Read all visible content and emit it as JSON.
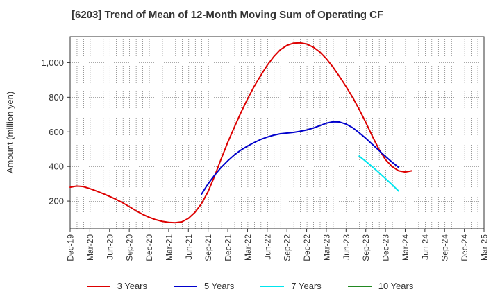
{
  "chart_data": {
    "type": "line",
    "title": "[6203]  Trend of Mean of 12-Month Moving Sum of Operating CF",
    "xlabel": "",
    "ylabel": "Amount (million yen)",
    "ylim": [
      40,
      1150
    ],
    "yticks": [
      200,
      400,
      600,
      800,
      1000
    ],
    "ytick_labels": [
      "200",
      "400",
      "600",
      "800",
      "1,000"
    ],
    "x_categories": [
      "Dec-19",
      "Mar-20",
      "Jun-20",
      "Sep-20",
      "Dec-20",
      "Mar-21",
      "Jun-21",
      "Sep-21",
      "Dec-21",
      "Mar-22",
      "Jun-22",
      "Sep-22",
      "Dec-22",
      "Mar-23",
      "Jun-23",
      "Sep-23",
      "Dec-23",
      "Mar-24",
      "Jun-24",
      "Sep-24",
      "Dec-24",
      "Mar-25"
    ],
    "x_months_total": 63,
    "grid": true,
    "legend_position": "bottom",
    "series": [
      {
        "name": "3 Years",
        "color": "#dd0000",
        "points": [
          [
            0,
            280
          ],
          [
            1,
            287
          ],
          [
            2,
            284
          ],
          [
            3,
            272
          ],
          [
            4,
            258
          ],
          [
            5,
            243
          ],
          [
            6,
            227
          ],
          [
            7,
            210
          ],
          [
            8,
            190
          ],
          [
            9,
            168
          ],
          [
            10,
            145
          ],
          [
            11,
            124
          ],
          [
            12,
            107
          ],
          [
            13,
            93
          ],
          [
            14,
            83
          ],
          [
            15,
            77
          ],
          [
            16,
            75
          ],
          [
            17,
            80
          ],
          [
            18,
            100
          ],
          [
            19,
            135
          ],
          [
            20,
            185
          ],
          [
            21,
            255
          ],
          [
            22,
            345
          ],
          [
            23,
            445
          ],
          [
            24,
            540
          ],
          [
            25,
            627
          ],
          [
            26,
            712
          ],
          [
            27,
            790
          ],
          [
            28,
            862
          ],
          [
            29,
            925
          ],
          [
            30,
            985
          ],
          [
            31,
            1035
          ],
          [
            32,
            1075
          ],
          [
            33,
            1100
          ],
          [
            34,
            1113
          ],
          [
            35,
            1115
          ],
          [
            36,
            1108
          ],
          [
            37,
            1090
          ],
          [
            38,
            1062
          ],
          [
            39,
            1023
          ],
          [
            40,
            975
          ],
          [
            41,
            920
          ],
          [
            42,
            862
          ],
          [
            43,
            800
          ],
          [
            44,
            730
          ],
          [
            45,
            655
          ],
          [
            46,
            575
          ],
          [
            47,
            500
          ],
          [
            48,
            440
          ],
          [
            49,
            400
          ],
          [
            50,
            375
          ],
          [
            51,
            368
          ],
          [
            52,
            375
          ]
        ]
      },
      {
        "name": "5 Years",
        "color": "#0000cc",
        "points": [
          [
            20,
            240
          ],
          [
            21,
            300
          ],
          [
            22,
            350
          ],
          [
            23,
            395
          ],
          [
            24,
            433
          ],
          [
            25,
            467
          ],
          [
            26,
            495
          ],
          [
            27,
            518
          ],
          [
            28,
            538
          ],
          [
            29,
            556
          ],
          [
            30,
            570
          ],
          [
            31,
            581
          ],
          [
            32,
            589
          ],
          [
            33,
            593
          ],
          [
            34,
            597
          ],
          [
            35,
            603
          ],
          [
            36,
            611
          ],
          [
            37,
            622
          ],
          [
            38,
            636
          ],
          [
            39,
            650
          ],
          [
            40,
            658
          ],
          [
            41,
            657
          ],
          [
            42,
            645
          ],
          [
            43,
            624
          ],
          [
            44,
            595
          ],
          [
            45,
            563
          ],
          [
            46,
            528
          ],
          [
            47,
            493
          ],
          [
            48,
            458
          ],
          [
            49,
            425
          ],
          [
            50,
            395
          ]
        ]
      },
      {
        "name": "7 Years",
        "color": "#00e5ee",
        "points": [
          [
            44,
            460
          ],
          [
            45,
            430
          ],
          [
            46,
            398
          ],
          [
            47,
            365
          ],
          [
            48,
            330
          ],
          [
            49,
            295
          ],
          [
            50,
            258
          ]
        ]
      },
      {
        "name": "10 Years",
        "color": "#228822",
        "points": []
      }
    ]
  }
}
